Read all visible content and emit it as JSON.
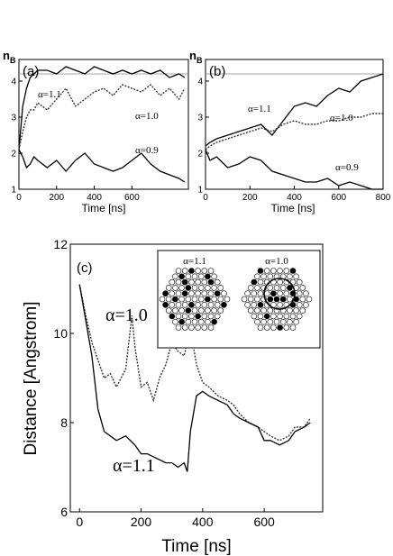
{
  "chart_data": [
    {
      "type": "line",
      "panel_label": "(a)",
      "ylabel": "n",
      "ylabel_sub": "B",
      "xlabel": "Time [ns]",
      "xlim": [
        0,
        900
      ],
      "ylim": [
        1,
        4.6
      ],
      "x_ticks": [
        "0",
        "200",
        "400",
        "600"
      ],
      "x_tick_values": [
        0,
        200,
        400,
        600
      ],
      "y_ticks": [
        "1",
        "2",
        "3",
        "4"
      ],
      "y_tick_values": [
        1,
        2,
        3,
        4
      ],
      "reference_line": 4.2,
      "series": [
        {
          "name": "α=1.1",
          "style": "solid",
          "x": [
            0,
            20,
            40,
            60,
            80,
            100,
            150,
            200,
            250,
            300,
            350,
            400,
            450,
            500,
            550,
            600,
            650,
            700,
            750,
            800,
            850,
            880
          ],
          "y": [
            2.1,
            3.3,
            3.8,
            4.1,
            4.2,
            4.3,
            4.3,
            4.2,
            4.4,
            4.3,
            4.2,
            4.4,
            4.3,
            4.2,
            4.3,
            4.2,
            4.3,
            4.2,
            4.3,
            4.1,
            4.2,
            4.1
          ]
        },
        {
          "name": "α=1.0",
          "style": "dotted",
          "x": [
            0,
            20,
            40,
            60,
            80,
            100,
            150,
            200,
            250,
            300,
            350,
            400,
            450,
            500,
            550,
            600,
            650,
            700,
            750,
            800,
            850,
            880
          ],
          "y": [
            2.1,
            2.6,
            3.0,
            3.2,
            3.2,
            3.4,
            3.2,
            3.5,
            3.8,
            3.3,
            3.5,
            3.7,
            3.8,
            3.6,
            3.9,
            3.8,
            3.7,
            3.9,
            3.6,
            3.8,
            3.5,
            3.8
          ]
        },
        {
          "name": "α=0.9",
          "style": "solid",
          "x": [
            0,
            20,
            40,
            60,
            80,
            100,
            150,
            200,
            250,
            300,
            350,
            400,
            450,
            500,
            550,
            600,
            650,
            700,
            750,
            800,
            850,
            880
          ],
          "y": [
            2.1,
            1.9,
            1.6,
            1.7,
            1.9,
            1.8,
            1.6,
            1.8,
            1.5,
            1.8,
            2.0,
            1.7,
            1.6,
            1.5,
            1.6,
            1.8,
            2.0,
            1.7,
            1.5,
            1.4,
            1.3,
            1.2
          ]
        }
      ]
    },
    {
      "type": "line",
      "panel_label": "(b)",
      "ylabel": "n",
      "ylabel_sub": "B",
      "xlabel": "Time [ns]",
      "xlim": [
        0,
        800
      ],
      "ylim": [
        1,
        4.6
      ],
      "x_ticks": [
        "0",
        "200",
        "400",
        "600",
        "800"
      ],
      "x_tick_values": [
        0,
        200,
        400,
        600,
        800
      ],
      "y_ticks": [
        "1",
        "2",
        "3",
        "4"
      ],
      "y_tick_values": [
        1,
        2,
        3,
        4
      ],
      "reference_line": 4.2,
      "series": [
        {
          "name": "α=1.1",
          "style": "solid",
          "x": [
            0,
            20,
            50,
            100,
            150,
            200,
            250,
            300,
            350,
            400,
            450,
            500,
            550,
            600,
            650,
            700,
            750,
            800
          ],
          "y": [
            2.2,
            2.3,
            2.4,
            2.5,
            2.6,
            2.7,
            2.8,
            2.5,
            2.9,
            3.3,
            3.4,
            3.3,
            3.6,
            3.8,
            3.7,
            4.0,
            4.1,
            4.2
          ]
        },
        {
          "name": "α=1.0",
          "style": "dotted",
          "x": [
            0,
            20,
            50,
            100,
            150,
            200,
            250,
            300,
            350,
            400,
            450,
            500,
            550,
            600,
            650,
            700,
            750,
            800
          ],
          "y": [
            2.1,
            2.2,
            2.3,
            2.4,
            2.5,
            2.6,
            2.7,
            2.6,
            2.8,
            2.9,
            2.8,
            2.8,
            2.9,
            2.9,
            3.0,
            3.0,
            3.1,
            3.1
          ]
        },
        {
          "name": "α=0.9",
          "style": "solid",
          "x": [
            0,
            20,
            50,
            100,
            150,
            200,
            250,
            300,
            350,
            400,
            450,
            500,
            550,
            600,
            650,
            700,
            750,
            800
          ],
          "y": [
            2.1,
            1.8,
            1.9,
            1.6,
            1.7,
            1.9,
            1.8,
            1.5,
            1.4,
            1.3,
            1.2,
            1.2,
            1.3,
            1.1,
            1.2,
            1.1,
            1.0,
            1.0
          ]
        }
      ]
    },
    {
      "type": "line",
      "panel_label": "(c)",
      "ylabel": "Distance [Angstrom]",
      "xlabel": "Time [ns]",
      "xlim": [
        -30,
        790
      ],
      "ylim": [
        6,
        12
      ],
      "x_ticks": [
        "0",
        "200",
        "400",
        "600"
      ],
      "x_tick_values": [
        0,
        200,
        400,
        600
      ],
      "y_ticks": [
        "6",
        "8",
        "10",
        "12"
      ],
      "y_tick_values": [
        6,
        8,
        10,
        12
      ],
      "series": [
        {
          "name": "α=1.0",
          "style": "dotted",
          "x": [
            0,
            20,
            40,
            60,
            80,
            100,
            120,
            150,
            170,
            180,
            200,
            220,
            240,
            260,
            280,
            300,
            320,
            340,
            360,
            380,
            400,
            420,
            450,
            480,
            500,
            520,
            550,
            580,
            600,
            620,
            650,
            680,
            700,
            730,
            750
          ],
          "y": [
            11.1,
            10.4,
            9.8,
            9.4,
            9.0,
            9.1,
            8.8,
            9.2,
            10.4,
            9.7,
            8.8,
            8.9,
            8.5,
            9.0,
            9.3,
            9.8,
            9.6,
            9.5,
            10.1,
            9.3,
            8.9,
            8.8,
            8.6,
            8.5,
            8.4,
            8.2,
            8.0,
            7.9,
            7.8,
            7.7,
            7.6,
            7.7,
            7.9,
            7.9,
            8.1
          ]
        },
        {
          "name": "α=1.1",
          "style": "solid",
          "x": [
            0,
            20,
            40,
            50,
            60,
            80,
            100,
            120,
            150,
            180,
            200,
            220,
            250,
            280,
            300,
            320,
            340,
            350,
            360,
            380,
            400,
            420,
            450,
            480,
            500,
            520,
            550,
            580,
            600,
            620,
            650,
            680,
            700,
            730,
            750
          ],
          "y": [
            11.1,
            10.3,
            9.5,
            8.9,
            8.3,
            7.8,
            7.7,
            7.6,
            7.7,
            7.5,
            7.3,
            7.3,
            7.2,
            7.1,
            7.1,
            7.0,
            7.1,
            6.9,
            7.8,
            8.6,
            8.7,
            8.6,
            8.5,
            8.4,
            8.2,
            8.1,
            8.0,
            7.9,
            7.6,
            7.6,
            7.5,
            7.6,
            7.8,
            7.9,
            8.0
          ]
        }
      ],
      "annotations": [
        "α=1.0",
        "α=1.1"
      ],
      "inset_labels": [
        "α=1.1",
        "α=1.0"
      ]
    }
  ]
}
